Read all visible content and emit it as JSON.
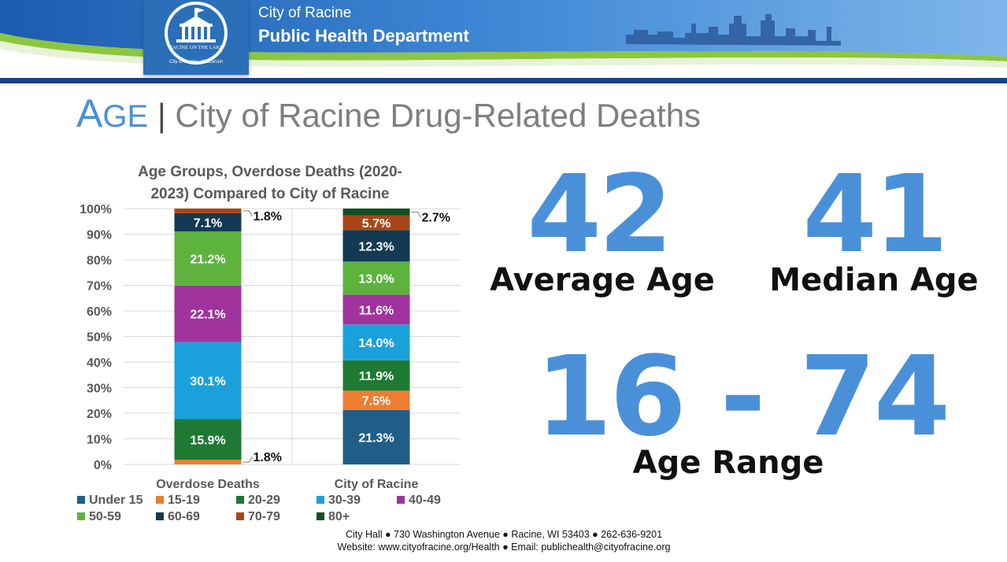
{
  "header": {
    "org_line1": "City of Racine",
    "org_line2": "Public Health Department",
    "logo_text_top": "RACINE ON THE LAKE",
    "logo_text_bottom": "City of Racine, Wisconsin"
  },
  "page": {
    "title_initial": "A",
    "title_rest": "GE",
    "title_separator": "|",
    "title_subtitle": "City of Racine Drug-Related Deaths"
  },
  "stats": {
    "average_value": "42",
    "average_label": "Average Age",
    "median_value": "41",
    "median_label": "Median Age",
    "range_value": "16 - 74",
    "range_label": "Age Range"
  },
  "footer": {
    "line1": "City Hall ● 730 Washington Avenue ● Racine, WI 53403 ● 262-636-9201",
    "line2": "Website: www.cityofracine.org/Health ● Email: publichealth@cityofracine.org"
  },
  "colors": {
    "accent": "#4a90d9",
    "banner_blue": "#2a6fb8",
    "banner_navy": "#1a3f8c",
    "banner_green": "#8dc63f"
  },
  "chart_data": {
    "type": "bar",
    "stacked": true,
    "percent": true,
    "title_lines": [
      "Age Groups, Overdose Deaths (2020-",
      "2023)  Compared to City of Racine"
    ],
    "categories": [
      "Overdose Deaths",
      "City of Racine"
    ],
    "ylim": [
      0,
      100
    ],
    "yticks": [
      "0%",
      "10%",
      "20%",
      "30%",
      "40%",
      "50%",
      "60%",
      "70%",
      "80%",
      "90%",
      "100%"
    ],
    "grid": true,
    "legend_position": "bottom",
    "series": [
      {
        "name": "Under 15",
        "color": "#1f5f87",
        "values": [
          0,
          21.3
        ],
        "labels": [
          "",
          "21.3%"
        ]
      },
      {
        "name": "15-19",
        "color": "#ed7d31",
        "values": [
          1.8,
          7.5
        ],
        "labels": [
          "1.8%",
          "7.5%"
        ]
      },
      {
        "name": "20-29",
        "color": "#1e7a32",
        "values": [
          15.9,
          11.9
        ],
        "labels": [
          "15.9%",
          "11.9%"
        ]
      },
      {
        "name": "30-39",
        "color": "#1aa1dc",
        "values": [
          30.1,
          14.0
        ],
        "labels": [
          "30.1%",
          "14.0%"
        ]
      },
      {
        "name": "40-49",
        "color": "#a0339e",
        "values": [
          22.1,
          11.6
        ],
        "labels": [
          "22.1%",
          "11.6%"
        ]
      },
      {
        "name": "50-59",
        "color": "#5db33e",
        "values": [
          21.2,
          13.0
        ],
        "labels": [
          "21.2%",
          "13.0%"
        ]
      },
      {
        "name": "60-69",
        "color": "#123a52",
        "values": [
          7.1,
          12.3
        ],
        "labels": [
          "7.1%",
          "12.3%"
        ]
      },
      {
        "name": "70-79",
        "color": "#a8461a",
        "values": [
          1.8,
          5.7
        ],
        "labels": [
          "1.8%",
          "5.7%"
        ]
      },
      {
        "name": "80+",
        "color": "#12501f",
        "values": [
          0,
          2.7
        ],
        "labels": [
          "",
          "2.7%"
        ]
      }
    ]
  }
}
